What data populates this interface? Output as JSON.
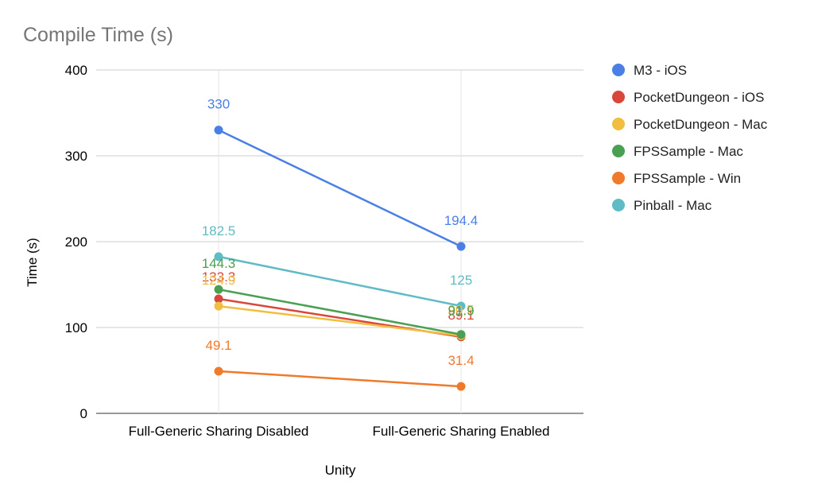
{
  "chart_data": {
    "type": "line",
    "title": "Compile Time (s)",
    "xlabel": "Unity",
    "ylabel": "Time (s)",
    "categories": [
      "Full-Generic Sharing Disabled",
      "Full-Generic Sharing Enabled"
    ],
    "ylim": [
      0,
      400
    ],
    "yticks": [
      0,
      100,
      200,
      300,
      400
    ],
    "grid": true,
    "legend_position": "right",
    "series": [
      {
        "name": "M3 - iOS",
        "color": "#4a7fe6",
        "values": [
          330,
          194.4
        ],
        "labels": [
          "330",
          "194.4"
        ]
      },
      {
        "name": "PocketDungeon - iOS",
        "color": "#d9473b",
        "values": [
          133.3,
          89.1
        ],
        "labels": [
          "133.3",
          "89.1"
        ]
      },
      {
        "name": "PocketDungeon - Mac",
        "color": "#f1be3f",
        "values": [
          124.9,
          90.5
        ],
        "labels": [
          "124.9",
          "90.5"
        ]
      },
      {
        "name": "FPSSample - Mac",
        "color": "#4aa052",
        "values": [
          144.3,
          91.9
        ],
        "labels": [
          "144.3",
          "91.9"
        ]
      },
      {
        "name": "FPSSample - Win",
        "color": "#f07a2b",
        "values": [
          49.1,
          31.4
        ],
        "labels": [
          "49.1",
          "31.4"
        ]
      },
      {
        "name": "Pinball - Mac",
        "color": "#5fbbc6",
        "values": [
          182.5,
          125
        ],
        "labels": [
          "182.5",
          "125"
        ]
      }
    ]
  }
}
